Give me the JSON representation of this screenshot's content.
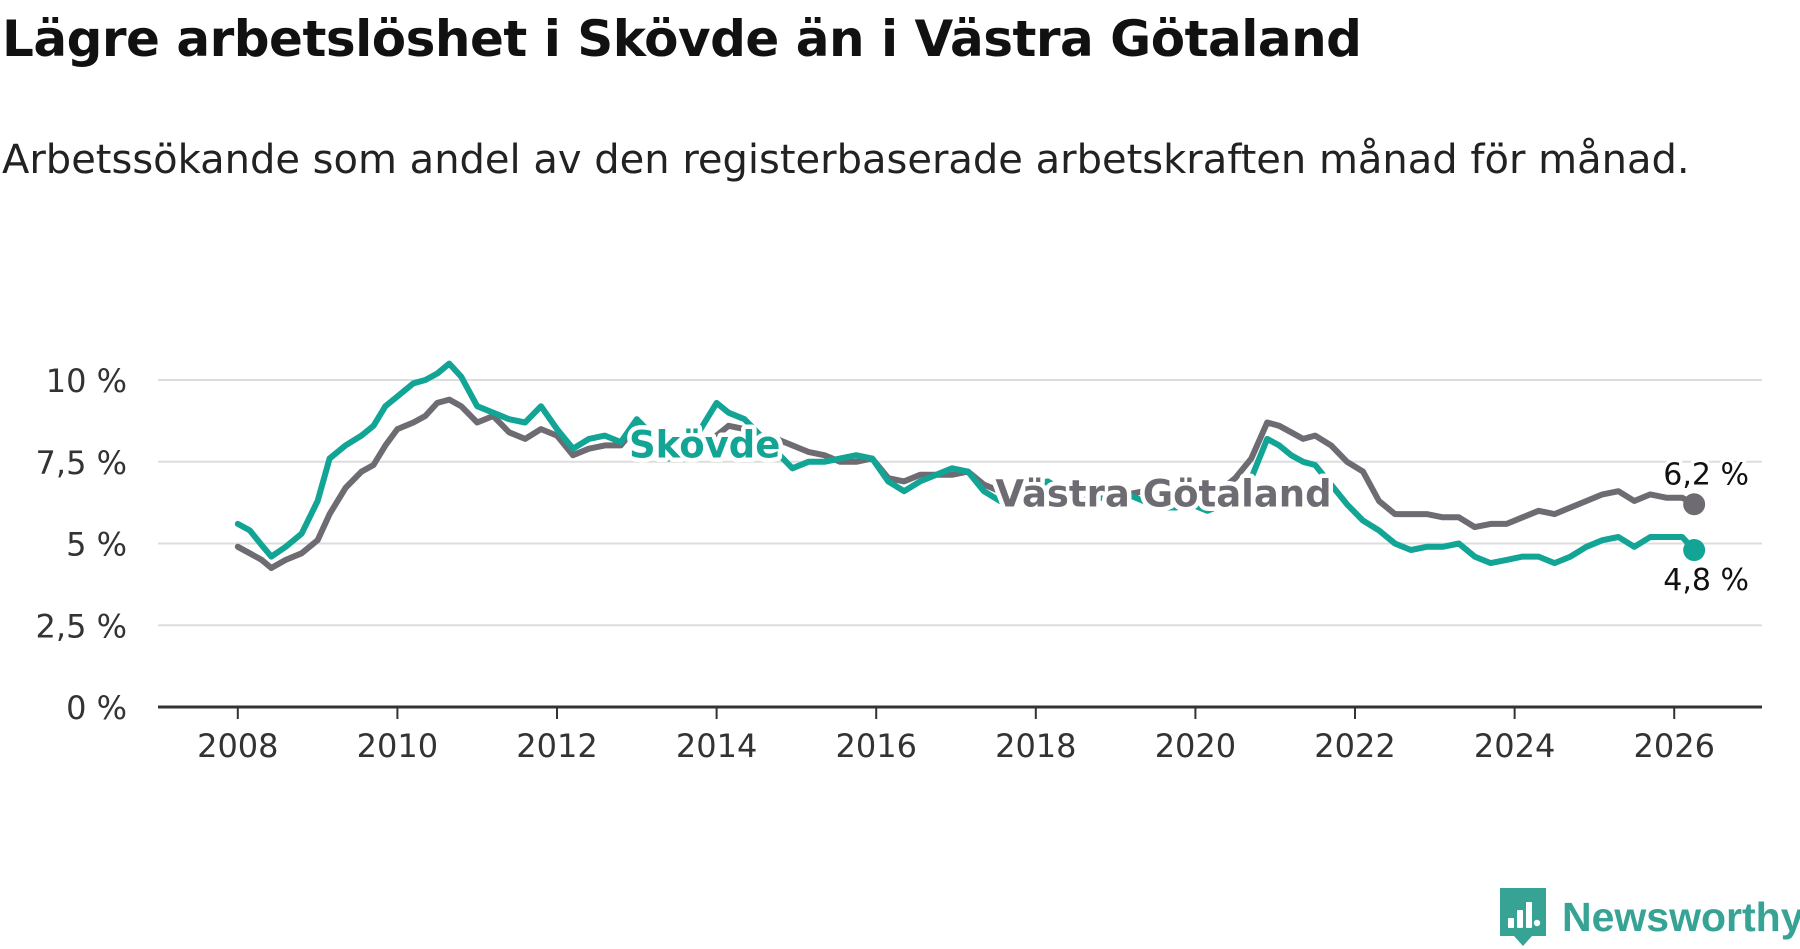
{
  "header": {
    "title": "Lägre arbetslöshet i Skövde än i Västra Götaland",
    "subtitle": "Arbetssökande som andel av den registerbaserade arbetskraften månad för månad."
  },
  "brand": {
    "name": "Newsworthy",
    "icon": "newsworthy-logo-icon",
    "color": "#36a394"
  },
  "colors": {
    "skovde": "#12a596",
    "vg": "#6e6c72",
    "grid": "#dddddd",
    "axis": "#333333"
  },
  "chart_data": {
    "type": "line",
    "title": "Lägre arbetslöshet i Skövde än i Västra Götaland",
    "subtitle": "Arbetssökande som andel av den registerbaserade arbetskraften månad för månad.",
    "xlabel": "",
    "ylabel": "",
    "xlim": [
      2007.0,
      2027.1
    ],
    "ylim": [
      0,
      10
    ],
    "grid": true,
    "x_ticks": [
      "2008",
      "2010",
      "2012",
      "2014",
      "2016",
      "2018",
      "2020",
      "2022",
      "2024",
      "2026"
    ],
    "y_ticks": [
      {
        "value": 0,
        "label": "0 %"
      },
      {
        "value": 2.5,
        "label": "2,5 %"
      },
      {
        "value": 5,
        "label": "5 %"
      },
      {
        "value": 7.5,
        "label": "7,5 %"
      },
      {
        "value": 10,
        "label": "10 %"
      }
    ],
    "series": [
      {
        "name": "Västra Götaland",
        "color": "#6e6c72",
        "label_x": 2019.6,
        "label_y": 6.5,
        "end_label": "6,2 %",
        "end_label_position": "above",
        "points": [
          [
            2008.0,
            4.9
          ],
          [
            2008.15,
            4.7
          ],
          [
            2008.3,
            4.5
          ],
          [
            2008.42,
            4.25
          ],
          [
            2008.6,
            4.5
          ],
          [
            2008.8,
            4.7
          ],
          [
            2009.0,
            5.1
          ],
          [
            2009.15,
            5.9
          ],
          [
            2009.35,
            6.7
          ],
          [
            2009.55,
            7.2
          ],
          [
            2009.7,
            7.4
          ],
          [
            2009.85,
            8.0
          ],
          [
            2010.0,
            8.5
          ],
          [
            2010.2,
            8.7
          ],
          [
            2010.35,
            8.9
          ],
          [
            2010.5,
            9.3
          ],
          [
            2010.65,
            9.4
          ],
          [
            2010.8,
            9.2
          ],
          [
            2011.0,
            8.7
          ],
          [
            2011.2,
            8.9
          ],
          [
            2011.4,
            8.4
          ],
          [
            2011.6,
            8.2
          ],
          [
            2011.8,
            8.5
          ],
          [
            2012.0,
            8.3
          ],
          [
            2012.2,
            7.7
          ],
          [
            2012.4,
            7.9
          ],
          [
            2012.6,
            8.0
          ],
          [
            2012.8,
            8.0
          ],
          [
            2013.0,
            8.6
          ],
          [
            2013.2,
            8.2
          ],
          [
            2013.4,
            7.8
          ],
          [
            2013.6,
            8.1
          ],
          [
            2013.8,
            8.2
          ],
          [
            2014.0,
            8.3
          ],
          [
            2014.15,
            8.6
          ],
          [
            2014.35,
            8.5
          ],
          [
            2014.55,
            8.3
          ],
          [
            2014.75,
            8.2
          ],
          [
            2014.95,
            8.0
          ],
          [
            2015.15,
            7.8
          ],
          [
            2015.35,
            7.7
          ],
          [
            2015.55,
            7.5
          ],
          [
            2015.75,
            7.5
          ],
          [
            2015.95,
            7.6
          ],
          [
            2016.15,
            7.0
          ],
          [
            2016.35,
            6.9
          ],
          [
            2016.55,
            7.1
          ],
          [
            2016.75,
            7.1
          ],
          [
            2016.95,
            7.1
          ],
          [
            2017.15,
            7.2
          ],
          [
            2017.35,
            6.8
          ],
          [
            2017.55,
            6.6
          ],
          [
            2017.75,
            6.6
          ],
          [
            2017.95,
            6.7
          ],
          [
            2018.15,
            6.8
          ],
          [
            2018.35,
            6.5
          ],
          [
            2018.55,
            6.3
          ],
          [
            2018.75,
            6.4
          ],
          [
            2018.95,
            6.4
          ],
          [
            2019.15,
            6.5
          ],
          [
            2019.35,
            6.6
          ],
          [
            2019.55,
            6.4
          ],
          [
            2019.75,
            6.2
          ],
          [
            2019.95,
            6.3
          ],
          [
            2020.15,
            6.5
          ],
          [
            2020.35,
            6.7
          ],
          [
            2020.5,
            7.0
          ],
          [
            2020.7,
            7.6
          ],
          [
            2020.9,
            8.7
          ],
          [
            2021.05,
            8.6
          ],
          [
            2021.2,
            8.4
          ],
          [
            2021.35,
            8.2
          ],
          [
            2021.5,
            8.3
          ],
          [
            2021.7,
            8.0
          ],
          [
            2021.9,
            7.5
          ],
          [
            2022.1,
            7.2
          ],
          [
            2022.3,
            6.3
          ],
          [
            2022.5,
            5.9
          ],
          [
            2022.7,
            5.9
          ],
          [
            2022.9,
            5.9
          ],
          [
            2023.1,
            5.8
          ],
          [
            2023.3,
            5.8
          ],
          [
            2023.5,
            5.5
          ],
          [
            2023.7,
            5.6
          ],
          [
            2023.9,
            5.6
          ],
          [
            2024.1,
            5.8
          ],
          [
            2024.3,
            6.0
          ],
          [
            2024.5,
            5.9
          ],
          [
            2024.7,
            6.1
          ],
          [
            2024.9,
            6.3
          ],
          [
            2025.1,
            6.5
          ],
          [
            2025.3,
            6.6
          ],
          [
            2025.5,
            6.3
          ],
          [
            2025.7,
            6.5
          ],
          [
            2025.9,
            6.4
          ],
          [
            2026.1,
            6.4
          ],
          [
            2026.25,
            6.2
          ]
        ]
      },
      {
        "name": "Skövde",
        "color": "#12a596",
        "label_x": 2013.85,
        "label_y": 8.0,
        "end_label": "4,8 %",
        "end_label_position": "below",
        "points": [
          [
            2008.0,
            5.6
          ],
          [
            2008.15,
            5.4
          ],
          [
            2008.3,
            4.95
          ],
          [
            2008.42,
            4.6
          ],
          [
            2008.6,
            4.9
          ],
          [
            2008.8,
            5.3
          ],
          [
            2009.0,
            6.3
          ],
          [
            2009.15,
            7.6
          ],
          [
            2009.35,
            8.0
          ],
          [
            2009.55,
            8.3
          ],
          [
            2009.7,
            8.6
          ],
          [
            2009.85,
            9.2
          ],
          [
            2010.0,
            9.5
          ],
          [
            2010.2,
            9.9
          ],
          [
            2010.35,
            10.0
          ],
          [
            2010.5,
            10.2
          ],
          [
            2010.65,
            10.5
          ],
          [
            2010.8,
            10.1
          ],
          [
            2011.0,
            9.2
          ],
          [
            2011.2,
            9.0
          ],
          [
            2011.4,
            8.8
          ],
          [
            2011.6,
            8.7
          ],
          [
            2011.8,
            9.2
          ],
          [
            2012.0,
            8.5
          ],
          [
            2012.2,
            7.9
          ],
          [
            2012.4,
            8.2
          ],
          [
            2012.6,
            8.3
          ],
          [
            2012.8,
            8.1
          ],
          [
            2013.0,
            8.8
          ],
          [
            2013.2,
            8.3
          ],
          [
            2013.4,
            7.6
          ],
          [
            2013.6,
            8.0
          ],
          [
            2013.8,
            8.5
          ],
          [
            2014.0,
            9.3
          ],
          [
            2014.15,
            9.0
          ],
          [
            2014.35,
            8.8
          ],
          [
            2014.55,
            8.3
          ],
          [
            2014.75,
            7.8
          ],
          [
            2014.95,
            7.3
          ],
          [
            2015.15,
            7.5
          ],
          [
            2015.35,
            7.5
          ],
          [
            2015.55,
            7.6
          ],
          [
            2015.75,
            7.7
          ],
          [
            2015.95,
            7.6
          ],
          [
            2016.15,
            6.9
          ],
          [
            2016.35,
            6.6
          ],
          [
            2016.55,
            6.9
          ],
          [
            2016.75,
            7.1
          ],
          [
            2016.95,
            7.3
          ],
          [
            2017.15,
            7.2
          ],
          [
            2017.35,
            6.6
          ],
          [
            2017.55,
            6.3
          ],
          [
            2017.75,
            6.6
          ],
          [
            2017.95,
            6.8
          ],
          [
            2018.15,
            6.9
          ],
          [
            2018.35,
            6.6
          ],
          [
            2018.55,
            6.3
          ],
          [
            2018.75,
            6.4
          ],
          [
            2018.95,
            6.4
          ],
          [
            2019.15,
            6.5
          ],
          [
            2019.35,
            6.3
          ],
          [
            2019.55,
            6.1
          ],
          [
            2019.75,
            6.1
          ],
          [
            2019.95,
            6.2
          ],
          [
            2020.15,
            6.0
          ],
          [
            2020.35,
            6.2
          ],
          [
            2020.5,
            6.5
          ],
          [
            2020.7,
            7.0
          ],
          [
            2020.9,
            8.2
          ],
          [
            2021.05,
            8.0
          ],
          [
            2021.2,
            7.7
          ],
          [
            2021.35,
            7.5
          ],
          [
            2021.5,
            7.4
          ],
          [
            2021.7,
            6.8
          ],
          [
            2021.9,
            6.2
          ],
          [
            2022.1,
            5.7
          ],
          [
            2022.3,
            5.4
          ],
          [
            2022.5,
            5.0
          ],
          [
            2022.7,
            4.8
          ],
          [
            2022.9,
            4.9
          ],
          [
            2023.1,
            4.9
          ],
          [
            2023.3,
            5.0
          ],
          [
            2023.5,
            4.6
          ],
          [
            2023.7,
            4.4
          ],
          [
            2023.9,
            4.5
          ],
          [
            2024.1,
            4.6
          ],
          [
            2024.3,
            4.6
          ],
          [
            2024.5,
            4.4
          ],
          [
            2024.7,
            4.6
          ],
          [
            2024.9,
            4.9
          ],
          [
            2025.1,
            5.1
          ],
          [
            2025.3,
            5.2
          ],
          [
            2025.5,
            4.9
          ],
          [
            2025.7,
            5.2
          ],
          [
            2025.9,
            5.2
          ],
          [
            2026.1,
            5.2
          ],
          [
            2026.25,
            4.8
          ]
        ]
      }
    ]
  }
}
